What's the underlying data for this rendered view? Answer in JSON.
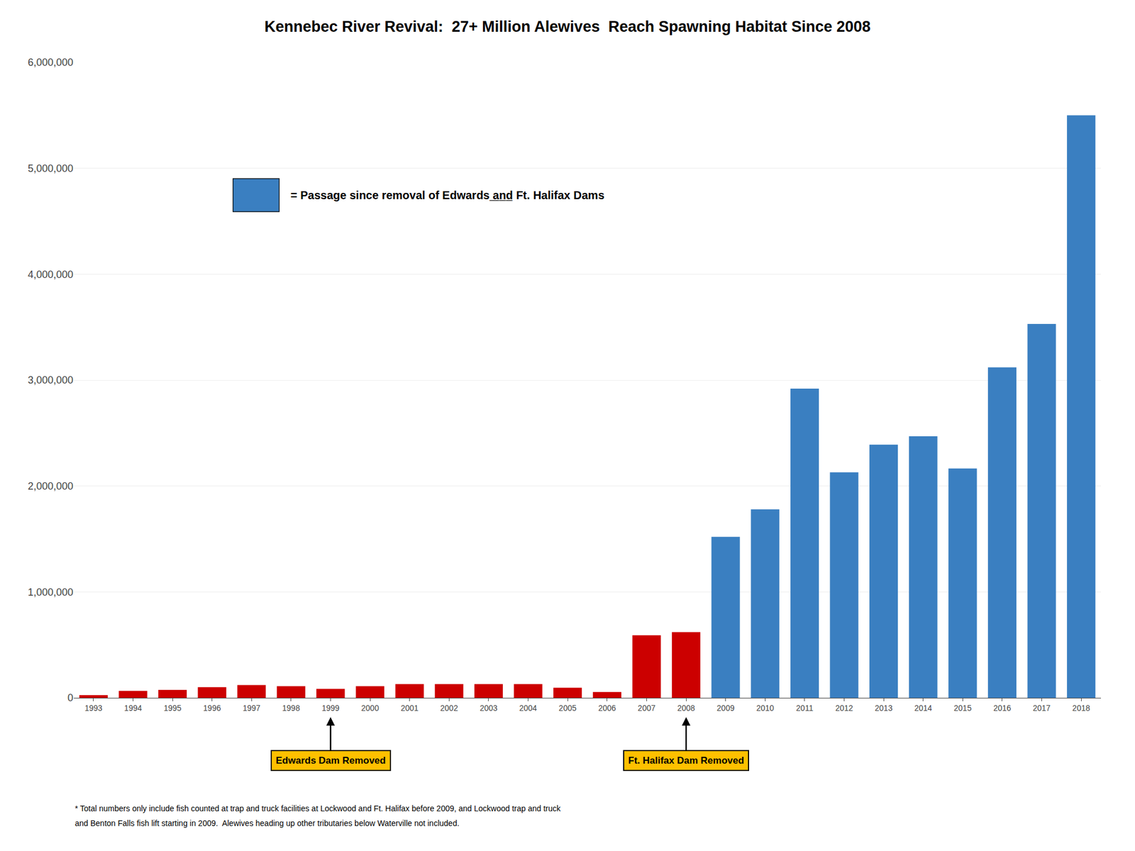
{
  "chart_data": {
    "type": "bar",
    "title": "Kennebec River Revival:  27+ Million Alewives  Reach Spawning Habitat Since 2008",
    "categories": [
      "1993",
      "1994",
      "1995",
      "1996",
      "1997",
      "1998",
      "1999",
      "2000",
      "2001",
      "2002",
      "2003",
      "2004",
      "2005",
      "2006",
      "2007",
      "2008",
      "2009",
      "2010",
      "2011",
      "2012",
      "2013",
      "2014",
      "2015",
      "2016",
      "2017",
      "2018"
    ],
    "values": [
      25000,
      65000,
      75000,
      100000,
      120000,
      110000,
      85000,
      110000,
      130000,
      130000,
      130000,
      130000,
      95000,
      55000,
      590000,
      620000,
      1520000,
      1780000,
      2920000,
      2130000,
      2390000,
      2470000,
      2165000,
      3120000,
      3530000,
      5500000
    ],
    "colors": [
      "#CC0000",
      "#CC0000",
      "#CC0000",
      "#CC0000",
      "#CC0000",
      "#CC0000",
      "#CC0000",
      "#CC0000",
      "#CC0000",
      "#CC0000",
      "#CC0000",
      "#CC0000",
      "#CC0000",
      "#CC0000",
      "#CC0000",
      "#CC0000",
      "#3A7FC1",
      "#3A7FC1",
      "#3A7FC1",
      "#3A7FC1",
      "#3A7FC1",
      "#3A7FC1",
      "#3A7FC1",
      "#3A7FC1",
      "#3A7FC1",
      "#3A7FC1"
    ],
    "ylim": [
      0,
      6000000
    ],
    "yticks": [
      0,
      {
        "value": 1000000,
        "label": "1,000,000"
      },
      {
        "value": 2000000,
        "label": "2,000,000"
      },
      {
        "value": 3000000,
        "label": "3,000,000"
      },
      {
        "value": 4000000,
        "label": "4,000,000"
      },
      {
        "value": 5000000,
        "label": "5,000,000"
      },
      {
        "value": 6000000,
        "label": "6,000,000"
      }
    ],
    "grid": true,
    "annotations": [
      {
        "text": "Edwards Dam Removed",
        "category": "1999",
        "color": "#FFC000"
      },
      {
        "text": "Ft. Halifax Dam Removed",
        "category": "2008",
        "color": "#FFC000"
      },
      {
        "text": "= Passage since removal of Edwards ̲a̲n̲d̲ Ft. Halifax Dams",
        "color": "#3A7FC1"
      }
    ],
    "footnotes": [
      "* Total numbers only include fish counted at trap and truck facilities at Lockwood and Ft. Halifax before 2009, and Lockwood trap and truck",
      "and Benton Falls fish lift starting in 2009.  Alewives heading up other tributaries below Waterville not included."
    ]
  }
}
